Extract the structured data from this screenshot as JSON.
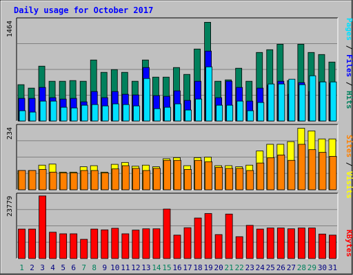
{
  "title": "Daily usage for October 2017",
  "colors": {
    "background": "#c0c0c0",
    "hits": "#00805c",
    "files": "#0000ff",
    "pages": "#00e0ff",
    "visits": "#ffff00",
    "sites": "#ff8000",
    "kbytes": "#ff0000",
    "weekend_label": "#00805c",
    "weekday_label": "#000080"
  },
  "legends": {
    "top": [
      {
        "key": "pages",
        "label": "Pages"
      },
      {
        "key": "sep",
        "label": " / "
      },
      {
        "key": "files",
        "label": "Files"
      },
      {
        "key": "sep",
        "label": " / "
      },
      {
        "key": "hits",
        "label": "Hits"
      }
    ],
    "middle": [
      {
        "key": "sites",
        "label": "Sites"
      },
      {
        "key": "sep",
        "label": " / "
      },
      {
        "key": "visits",
        "label": "Visits"
      }
    ],
    "bottom": [
      {
        "key": "kbytes",
        "label": "KBytes"
      }
    ]
  },
  "chart_data": {
    "type": "bar",
    "categories": [
      "1",
      "2",
      "3",
      "4",
      "5",
      "6",
      "7",
      "8",
      "9",
      "10",
      "11",
      "12",
      "13",
      "14",
      "15",
      "16",
      "17",
      "18",
      "19",
      "20",
      "21",
      "22",
      "23",
      "24",
      "25",
      "26",
      "27",
      "28",
      "29",
      "30",
      "31"
    ],
    "weekend_days": [
      "1",
      "7",
      "8",
      "14",
      "15",
      "21",
      "22",
      "28",
      "29"
    ],
    "panels": [
      {
        "name": "hits-files-pages",
        "ymax_label": "1464",
        "ylim": [
          0,
          1464
        ],
        "series": [
          {
            "name": "Hits",
            "color_key": "hits",
            "values": [
              530,
              480,
              800,
              580,
              580,
              590,
              580,
              890,
              710,
              750,
              710,
              580,
              890,
              640,
              640,
              780,
              680,
              1050,
              1440,
              580,
              600,
              770,
              580,
              1000,
              1040,
              1120,
              590,
              1120,
              1000,
              970,
              860
            ]
          },
          {
            "name": "Files",
            "color_key": "files",
            "values": [
              330,
              330,
              490,
              340,
              320,
              330,
              280,
              430,
              340,
              430,
              390,
              380,
              780,
              370,
              360,
              440,
              300,
              580,
              1020,
              340,
              580,
              490,
              290,
              480,
              520,
              580,
              390,
              560,
              430,
              570,
              550
            ]
          },
          {
            "name": "Pages",
            "color_key": "pages",
            "values": [
              150,
              130,
              290,
              290,
              200,
              190,
              230,
              240,
              220,
              250,
              240,
              220,
              620,
              180,
              200,
              250,
              160,
              320,
              790,
              230,
              230,
              290,
              150,
              270,
              540,
              540,
              610,
              530,
              660,
              570,
              570
            ]
          }
        ]
      },
      {
        "name": "visits-sites",
        "ymax_label": "234",
        "ylim": [
          0,
          234
        ],
        "series": [
          {
            "name": "Visits",
            "color_key": "visits",
            "values": [
              72,
              72,
              92,
              96,
              66,
              66,
              86,
              90,
              66,
              95,
              102,
              88,
              92,
              86,
              116,
              120,
              90,
              120,
              122,
              90,
              90,
              86,
              92,
              145,
              170,
              170,
              180,
              230,
              220,
              190,
              190
            ]
          },
          {
            "name": "Sites",
            "color_key": "sites",
            "values": [
              72,
              72,
              76,
              66,
              63,
              63,
              72,
              72,
              63,
              78,
              90,
              80,
              72,
              80,
              110,
              110,
              76,
              110,
              105,
              84,
              80,
              80,
              72,
              100,
              120,
              130,
              110,
              170,
              150,
              140,
              125
            ]
          }
        ]
      },
      {
        "name": "kbytes",
        "ymax_label": "23779",
        "ylim": [
          0,
          23779
        ],
        "series": [
          {
            "name": "KBytes",
            "color_key": "kbytes",
            "values": [
              11200,
              11200,
              23800,
              10000,
              9400,
              9400,
              7300,
              11200,
              10900,
              11500,
              9400,
              10800,
              11300,
              11300,
              18800,
              8900,
              11700,
              15400,
              17100,
              9100,
              16900,
              8300,
              12600,
              11200,
              11600,
              11600,
              11300,
              11600,
              11600,
              9300,
              8900
            ]
          }
        ]
      }
    ]
  }
}
